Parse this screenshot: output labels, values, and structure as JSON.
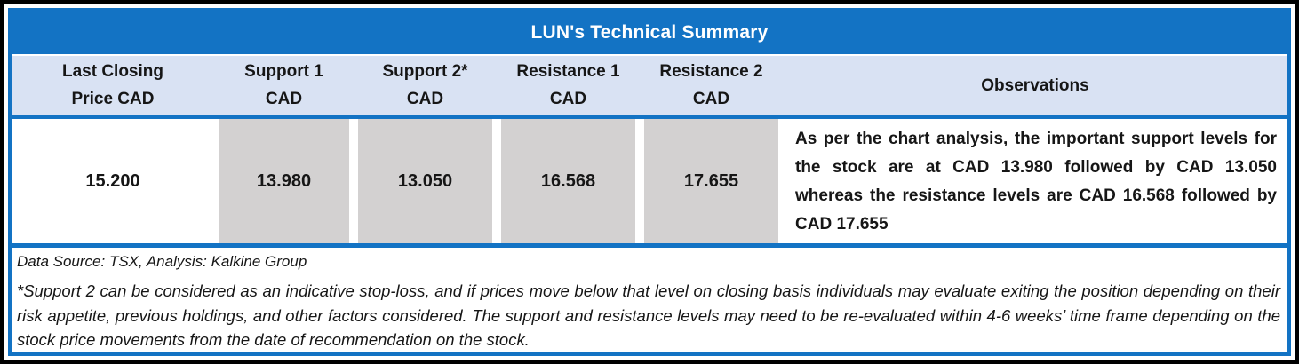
{
  "colors": {
    "accent_blue": "#1373C4",
    "header_fill": "#D9E2F3",
    "cell_fill_gray": "#D3D1D1",
    "frame_black": "#000000",
    "text_dark": "#161616"
  },
  "table": {
    "title": "LUN's Technical Summary",
    "columns": [
      {
        "line1": "Last Closing",
        "line2": "Price CAD"
      },
      {
        "line1": "Support 1",
        "line2": "CAD"
      },
      {
        "line1": "Support 2*",
        "line2": "CAD"
      },
      {
        "line1": "Resistance 1",
        "line2": "CAD"
      },
      {
        "line1": "Resistance 2",
        "line2": "CAD"
      },
      {
        "line1": "Observations",
        "line2": ""
      }
    ],
    "row": {
      "last_closing_price": "15.200",
      "support_1": "13.980",
      "support_2": "13.050",
      "resistance_1": "16.568",
      "resistance_2": "17.655",
      "observations": "As per the chart analysis, the important support levels for the stock are at CAD 13.980 followed by CAD 13.050 whereas the resistance levels are CAD 16.568 followed by CAD 17.655"
    },
    "data_source": "Data Source: TSX, Analysis: Kalkine Group",
    "footnote": "*Support 2 can be considered as an indicative stop-loss, and if prices move below that level on closing basis individuals may evaluate exiting the position depending on their risk appetite, previous holdings, and other factors considered. The support and resistance levels may need to be re-evaluated within 4-6 weeks’ time frame depending on the stock price movements from the date of recommendation on the stock."
  }
}
